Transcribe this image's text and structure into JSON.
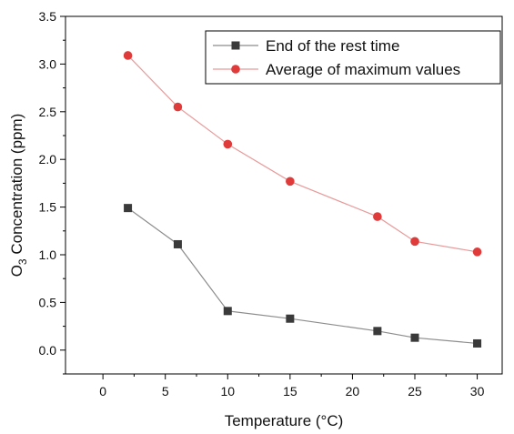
{
  "chart_data": {
    "type": "line",
    "xlabel": "Temperature (°C)",
    "ylabel": {
      "prefix": "O",
      "subscript": "3",
      "suffix": " Concentration (ppm)"
    },
    "xlim": [
      -3,
      32
    ],
    "ylim": [
      -0.25,
      3.5
    ],
    "x_ticks": [
      0,
      5,
      10,
      15,
      20,
      25,
      30
    ],
    "x_tick_labels": [
      "0",
      "5",
      "10",
      "15",
      "20",
      "25",
      "30"
    ],
    "y_ticks": [
      0.0,
      0.5,
      1.0,
      1.5,
      2.0,
      2.5,
      3.0,
      3.5
    ],
    "y_tick_labels": [
      "0.0",
      "0.5",
      "1.0",
      "1.5",
      "2.0",
      "2.5",
      "3.0",
      "3.5"
    ],
    "grid": false,
    "legend_position": "top-right",
    "series": [
      {
        "name": "End of the rest time",
        "marker": "square",
        "color": "#3a3a3a",
        "line_color": "#8c8c8c",
        "x": [
          2,
          6,
          10,
          15,
          22,
          25,
          30
        ],
        "y": [
          1.49,
          1.11,
          0.41,
          0.33,
          0.2,
          0.13,
          0.07
        ]
      },
      {
        "name": "Average of maximum values",
        "marker": "circle",
        "color": "#e03b3b",
        "line_color": "#e89a9a",
        "x": [
          2,
          6,
          10,
          15,
          22,
          25,
          30
        ],
        "y": [
          3.09,
          2.55,
          2.16,
          1.77,
          1.4,
          1.14,
          1.03
        ]
      }
    ]
  }
}
